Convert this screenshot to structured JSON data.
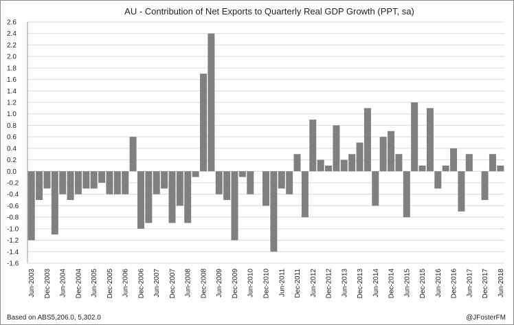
{
  "chart_data": {
    "type": "bar",
    "title": "AU - Contribution of Net Exports to Quarterly Real GDP Growth (PPT, sa)",
    "xlabel": "",
    "ylabel": "",
    "ylim": [
      -1.6,
      2.6
    ],
    "y_ticks": [
      "2.6",
      "2.4",
      "2.2",
      "2.0",
      "1.8",
      "1.6",
      "1.4",
      "1.2",
      "1.0",
      "0.8",
      "0.6",
      "0.4",
      "0.2",
      "0.0",
      "-0.2",
      "-0.4",
      "-0.6",
      "-0.8",
      "-1.0",
      "-1.2",
      "-1.4",
      "-1.6"
    ],
    "grid": true,
    "bar_color": "#808080",
    "grid_color": "#d9d9d9",
    "categories": [
      "Jun-2003",
      "Sep-2003",
      "Dec-2003",
      "Mar-2004",
      "Jun-2004",
      "Sep-2004",
      "Dec-2004",
      "Mar-2005",
      "Jun-2005",
      "Sep-2005",
      "Dec-2005",
      "Mar-2006",
      "Jun-2006",
      "Sep-2006",
      "Dec-2006",
      "Mar-2007",
      "Jun-2007",
      "Sep-2007",
      "Dec-2007",
      "Mar-2008",
      "Jun-2008",
      "Sep-2008",
      "Dec-2008",
      "Mar-2009",
      "Jun-2009",
      "Sep-2009",
      "Dec-2009",
      "Mar-2010",
      "Jun-2010",
      "Sep-2010",
      "Dec-2010",
      "Mar-2011",
      "Jun-2011",
      "Sep-2011",
      "Dec-2011",
      "Mar-2012",
      "Jun-2012",
      "Sep-2012",
      "Dec-2012",
      "Mar-2013",
      "Jun-2013",
      "Sep-2013",
      "Dec-2013",
      "Mar-2014",
      "Jun-2014",
      "Sep-2014",
      "Dec-2014",
      "Mar-2015",
      "Jun-2015",
      "Sep-2015",
      "Dec-2015",
      "Mar-2016",
      "Jun-2016",
      "Sep-2016",
      "Dec-2016",
      "Mar-2017",
      "Jun-2017",
      "Sep-2017",
      "Dec-2017",
      "Mar-2018",
      "Jun-2018"
    ],
    "x_tick_labels": [
      "Jun-2003",
      "Dec-2003",
      "Jun-2004",
      "Dec-2004",
      "Jun-2005",
      "Dec-2005",
      "Jun-2006",
      "Dec-2006",
      "Jun-2007",
      "Dec-2007",
      "Jun-2008",
      "Dec-2008",
      "Jun-2009",
      "Dec-2009",
      "Jun-2010",
      "Dec-2010",
      "Jun-2011",
      "Dec-2011",
      "Jun-2012",
      "Dec-2012",
      "Jun-2013",
      "Dec-2013",
      "Jun-2014",
      "Dec-2014",
      "Jun-2015",
      "Dec-2015",
      "Jun-2016",
      "Dec-2016",
      "Jun-2017",
      "Dec-2017",
      "Jun-2018"
    ],
    "values": [
      -1.2,
      -0.5,
      -0.3,
      -1.1,
      -0.4,
      -0.5,
      -0.4,
      -0.3,
      -0.3,
      -0.2,
      -0.4,
      -0.4,
      -0.4,
      0.6,
      -1.0,
      -0.9,
      -0.4,
      -0.3,
      -0.9,
      -0.6,
      -0.9,
      -0.1,
      1.7,
      2.4,
      -0.4,
      -0.5,
      -1.2,
      -0.1,
      -0.4,
      0.0,
      -0.6,
      -1.4,
      -0.3,
      -0.4,
      0.3,
      -0.8,
      0.9,
      0.2,
      0.1,
      0.8,
      0.2,
      0.3,
      0.5,
      1.1,
      -0.6,
      0.6,
      0.7,
      0.3,
      -0.8,
      1.2,
      0.1,
      1.1,
      -0.3,
      0.1,
      0.4,
      -0.7,
      0.3,
      0.0,
      -0.5,
      0.3,
      0.1
    ]
  },
  "footer": {
    "source": "Based on ABS5,206.0, 5,302.0",
    "credit": "@JFosterFM"
  }
}
